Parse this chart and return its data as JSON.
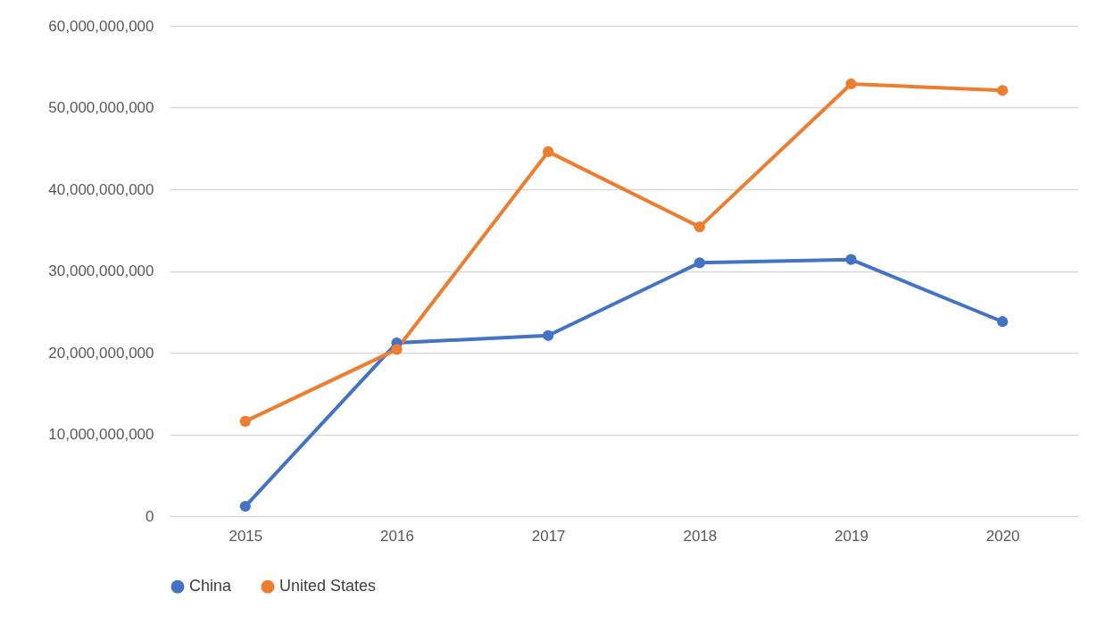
{
  "chart_data": {
    "type": "line",
    "categories": [
      "2015",
      "2016",
      "2017",
      "2018",
      "2019",
      "2020"
    ],
    "series": [
      {
        "name": "China",
        "color": "#4472c4",
        "values": [
          1200000000,
          21200000000,
          22100000000,
          31000000000,
          31400000000,
          23800000000
        ]
      },
      {
        "name": "United States",
        "color": "#ed7d31",
        "values": [
          11600000000,
          20400000000,
          44600000000,
          35400000000,
          52900000000,
          52100000000
        ]
      }
    ],
    "ylim": [
      0,
      60000000000
    ],
    "yticks": [
      0,
      {
        "value": 10000000000,
        "label": "10,000,000,000"
      },
      {
        "value": 20000000000,
        "label": "20,000,000,000"
      },
      {
        "value": 30000000000,
        "label": "30,000,000,000"
      },
      {
        "value": 40000000000,
        "label": "40,000,000,000"
      },
      {
        "value": 50000000000,
        "label": "50,000,000,000"
      },
      {
        "value": 60000000000,
        "label": "60,000,000,000"
      }
    ],
    "grid": "y",
    "legend": "bottom",
    "marker": "circle",
    "line_style": "solid"
  }
}
